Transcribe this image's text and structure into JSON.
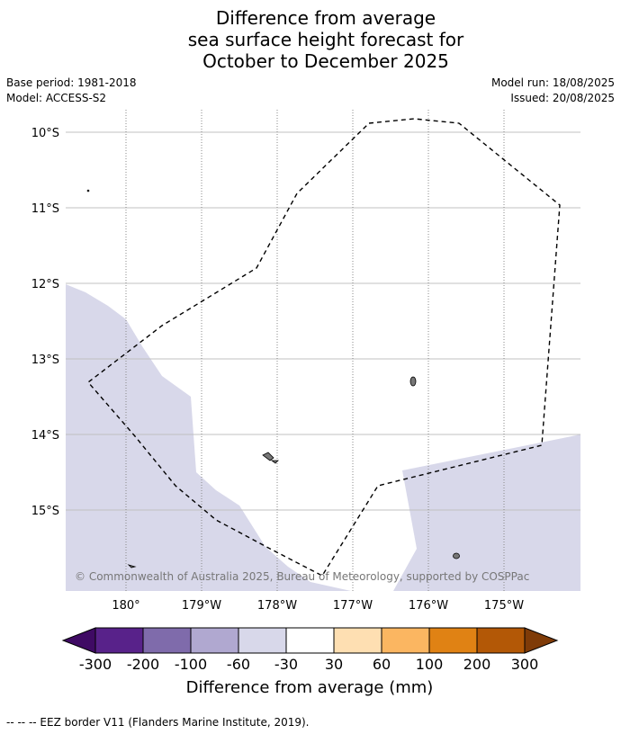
{
  "title_lines": [
    "Difference from average",
    "sea surface height forecast for",
    "October to December 2025"
  ],
  "meta": {
    "base_period": "Base period: 1981-2018",
    "model": "Model: ACCESS-S2",
    "model_run": "Model run: 18/08/2025",
    "issued": "Issued: 20/08/2025"
  },
  "map": {
    "lat_labels": [
      "10°S",
      "11°S",
      "12°S",
      "13°S",
      "14°S",
      "15°S"
    ],
    "lon_labels": [
      "180°",
      "179°W",
      "178°W",
      "177°W",
      "176°W",
      "175°W"
    ],
    "copyright": "© Commonwealth of Australia 2025, Bureau of Meteorology, supported by COSPPac",
    "shaded_category": "-60 to -30 mm",
    "shade_color": "#d8d8ea"
  },
  "colorbar": {
    "ticks": [
      "-300",
      "-200",
      "-100",
      "-60",
      "-30",
      "30",
      "60",
      "100",
      "200",
      "300"
    ],
    "colors": [
      "#3f0a64",
      "#58228a",
      "#7f6bab",
      "#b0a8d0",
      "#d8d8ea",
      "#ffffff",
      "#fedfb2",
      "#fbb661",
      "#e08214",
      "#b35806",
      "#7f3b08"
    ],
    "title": "Difference from average (mm)"
  },
  "footnote": "-- -- -- EEZ border V11 (Flanders Marine Institute, 2019)."
}
